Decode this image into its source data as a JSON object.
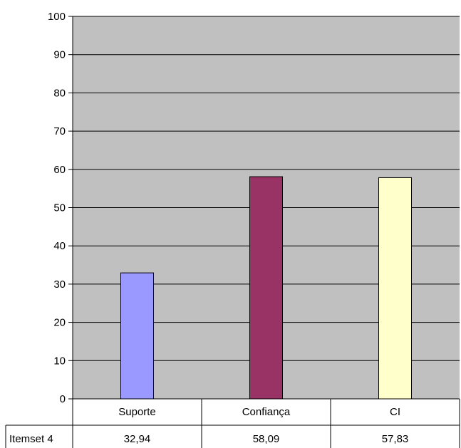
{
  "chart_data": {
    "type": "bar",
    "title": "",
    "xlabel": "",
    "ylabel": "",
    "categories": [
      "Suporte",
      "Confiança",
      "CI"
    ],
    "series": [
      {
        "name": "Itemset 4",
        "values": [
          32.94,
          58.09,
          57.83
        ],
        "value_labels": [
          "32,94",
          "58,09",
          "57,83"
        ]
      }
    ],
    "bar_colors": [
      "#9999ff",
      "#993366",
      "#ffffcc"
    ],
    "plot_background": "#c0c0c0",
    "ylim": [
      0,
      100
    ],
    "yticks": [
      "0",
      "10",
      "20",
      "30",
      "40",
      "50",
      "60",
      "70",
      "80",
      "90",
      "100"
    ],
    "grid": true,
    "data_table": true
  }
}
